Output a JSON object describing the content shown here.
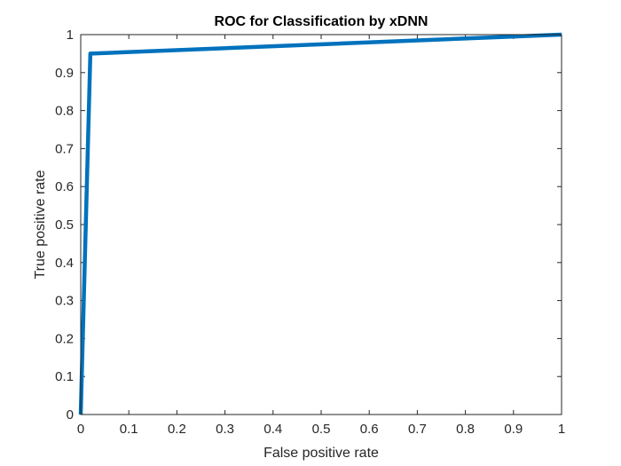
{
  "chart_data": {
    "type": "line",
    "title": "ROC for Classification by xDNN",
    "xlabel": "False positive rate",
    "ylabel": "True positive rate",
    "xlim": [
      0,
      1
    ],
    "ylim": [
      0,
      1
    ],
    "xticks": [
      "0",
      "0.1",
      "0.2",
      "0.3",
      "0.4",
      "0.5",
      "0.6",
      "0.7",
      "0.8",
      "0.9",
      "1"
    ],
    "yticks": [
      "0",
      "0.1",
      "0.2",
      "0.3",
      "0.4",
      "0.5",
      "0.6",
      "0.7",
      "0.8",
      "0.9",
      "1"
    ],
    "grid": false,
    "series": [
      {
        "color": "#0072BD",
        "x": [
          0,
          0.02,
          1
        ],
        "y": [
          0,
          0.95,
          1
        ]
      }
    ]
  },
  "colors": {
    "axes": "#262626",
    "background": "#ffffff",
    "line": "#0072BD"
  }
}
